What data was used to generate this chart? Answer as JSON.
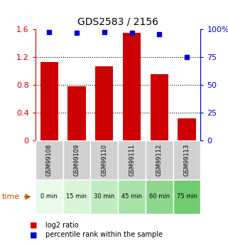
{
  "title": "GDS2583 / 2156",
  "samples": [
    "GSM99108",
    "GSM99109",
    "GSM99110",
    "GSM99111",
    "GSM99112",
    "GSM99113"
  ],
  "time_labels": [
    "0 min",
    "15 min",
    "30 min",
    "45 min",
    "60 min",
    "75 min"
  ],
  "log2_ratio": [
    1.13,
    0.78,
    1.07,
    1.55,
    0.95,
    0.32
  ],
  "percentile_rank": [
    98.0,
    97.0,
    98.0,
    97.0,
    95.5,
    75.0
  ],
  "bar_color": "#cc0000",
  "dot_color": "#0000cc",
  "ylim_left": [
    0,
    1.6
  ],
  "ylim_right": [
    0,
    100
  ],
  "yticks_left": [
    0,
    0.4,
    0.8,
    1.2,
    1.6
  ],
  "ytick_labels_left": [
    "0",
    "0.4",
    "0.8",
    "1.2",
    "1.6"
  ],
  "yticks_right": [
    0,
    25,
    50,
    75,
    100
  ],
  "ytick_labels_right": [
    "0",
    "25",
    "50",
    "75",
    "100%"
  ],
  "time_bg_colors": [
    "#eafaea",
    "#d8f5d8",
    "#c0ebc0",
    "#a8e0a8",
    "#8ed68e",
    "#70cc70"
  ],
  "sample_bg_color": "#d0d0d0",
  "title_color": "#000000",
  "left_axis_color": "#cc0000",
  "right_axis_color": "#0000cc",
  "legend_bar_label": "log2 ratio",
  "legend_dot_label": "percentile rank within the sample",
  "time_label": "time"
}
